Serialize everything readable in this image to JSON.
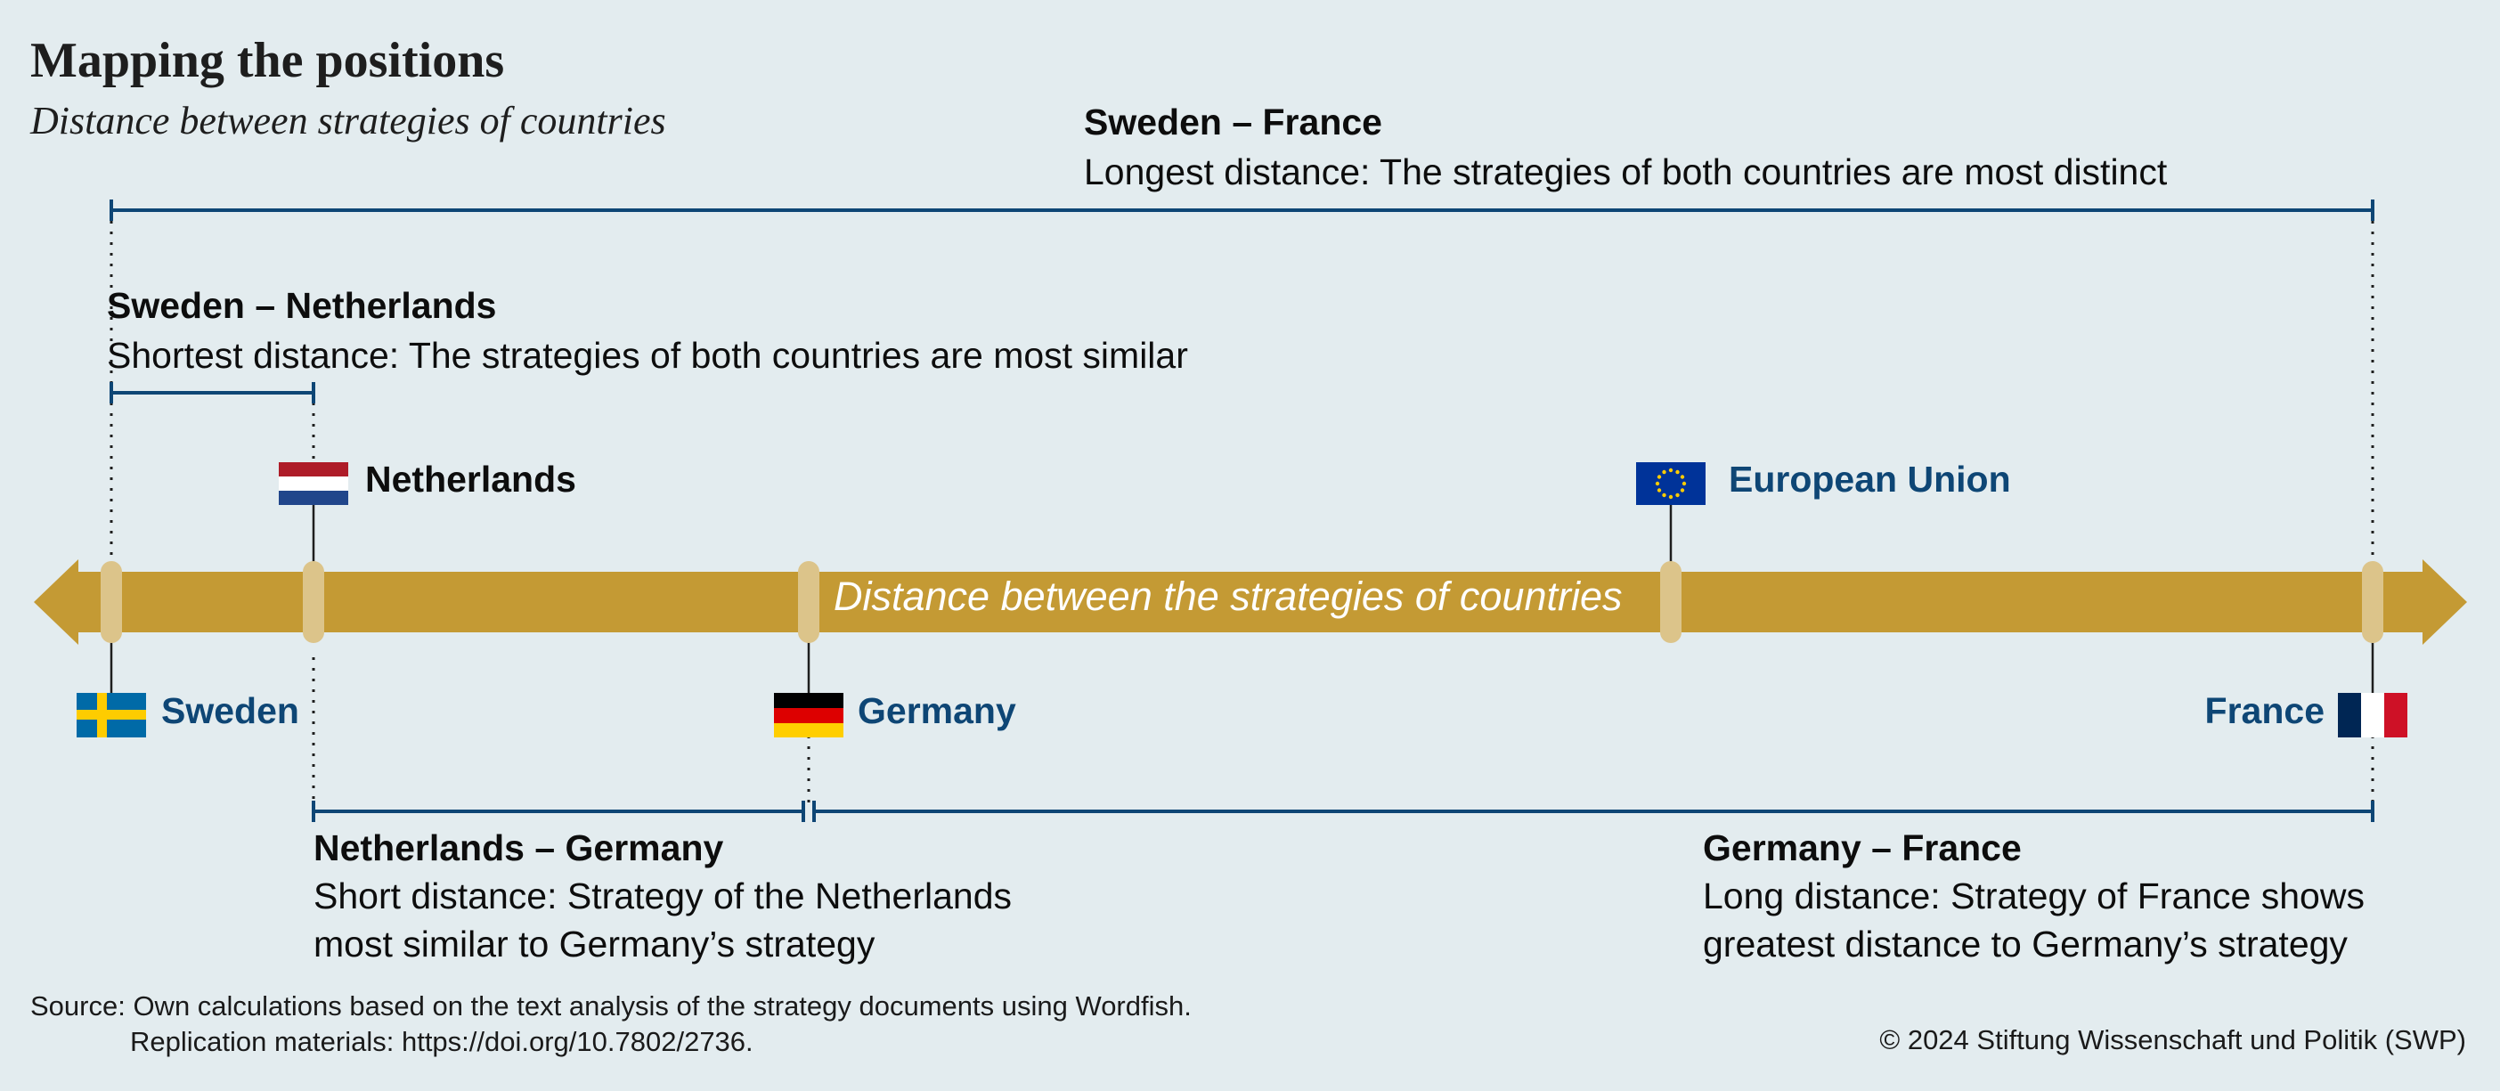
{
  "header": {
    "title": "Mapping the positions",
    "subtitle": "Distance between strategies of countries"
  },
  "axis": {
    "label": "Distance between the strategies of countries"
  },
  "countries": {
    "sweden": {
      "label": "Sweden",
      "flag": "sweden-flag"
    },
    "netherlands": {
      "label": "Netherlands",
      "flag": "netherlands-flag"
    },
    "germany": {
      "label": "Germany",
      "flag": "germany-flag"
    },
    "eu": {
      "label": "European Union",
      "flag": "eu-flag"
    },
    "france": {
      "label": "France",
      "flag": "france-flag"
    }
  },
  "distances": {
    "sweden_france": {
      "title": "Sweden – France",
      "text": "Longest distance: The strategies of both countries are most distinct"
    },
    "sweden_netherlands": {
      "title": "Sweden – Netherlands",
      "text": "Shortest distance: The strategies of both countries are most similar"
    },
    "netherlands_germany": {
      "title": "Netherlands – Germany",
      "line1": "Short distance: Strategy of the Netherlands",
      "line2": "most similar to Germany’s strategy"
    },
    "germany_france": {
      "title": "Germany – France",
      "line1": "Long distance: Strategy of France shows",
      "line2": "greatest distance to Germany’s strategy"
    }
  },
  "footer": {
    "source_line1": "Source: Own calculations based on the text analysis of the strategy documents using Wordfish.",
    "source_line2": "Replication materials: https://doi.org/10.7802/2736.",
    "copyright": "© 2024 Stiftung Wissenschaft und Politik (SWP)"
  },
  "colors": {
    "background": "#e3ecef",
    "axis": "#c49a34",
    "marker": "#dcc48a",
    "bracket": "#0e4675",
    "label_blue": "#0e4675"
  }
}
